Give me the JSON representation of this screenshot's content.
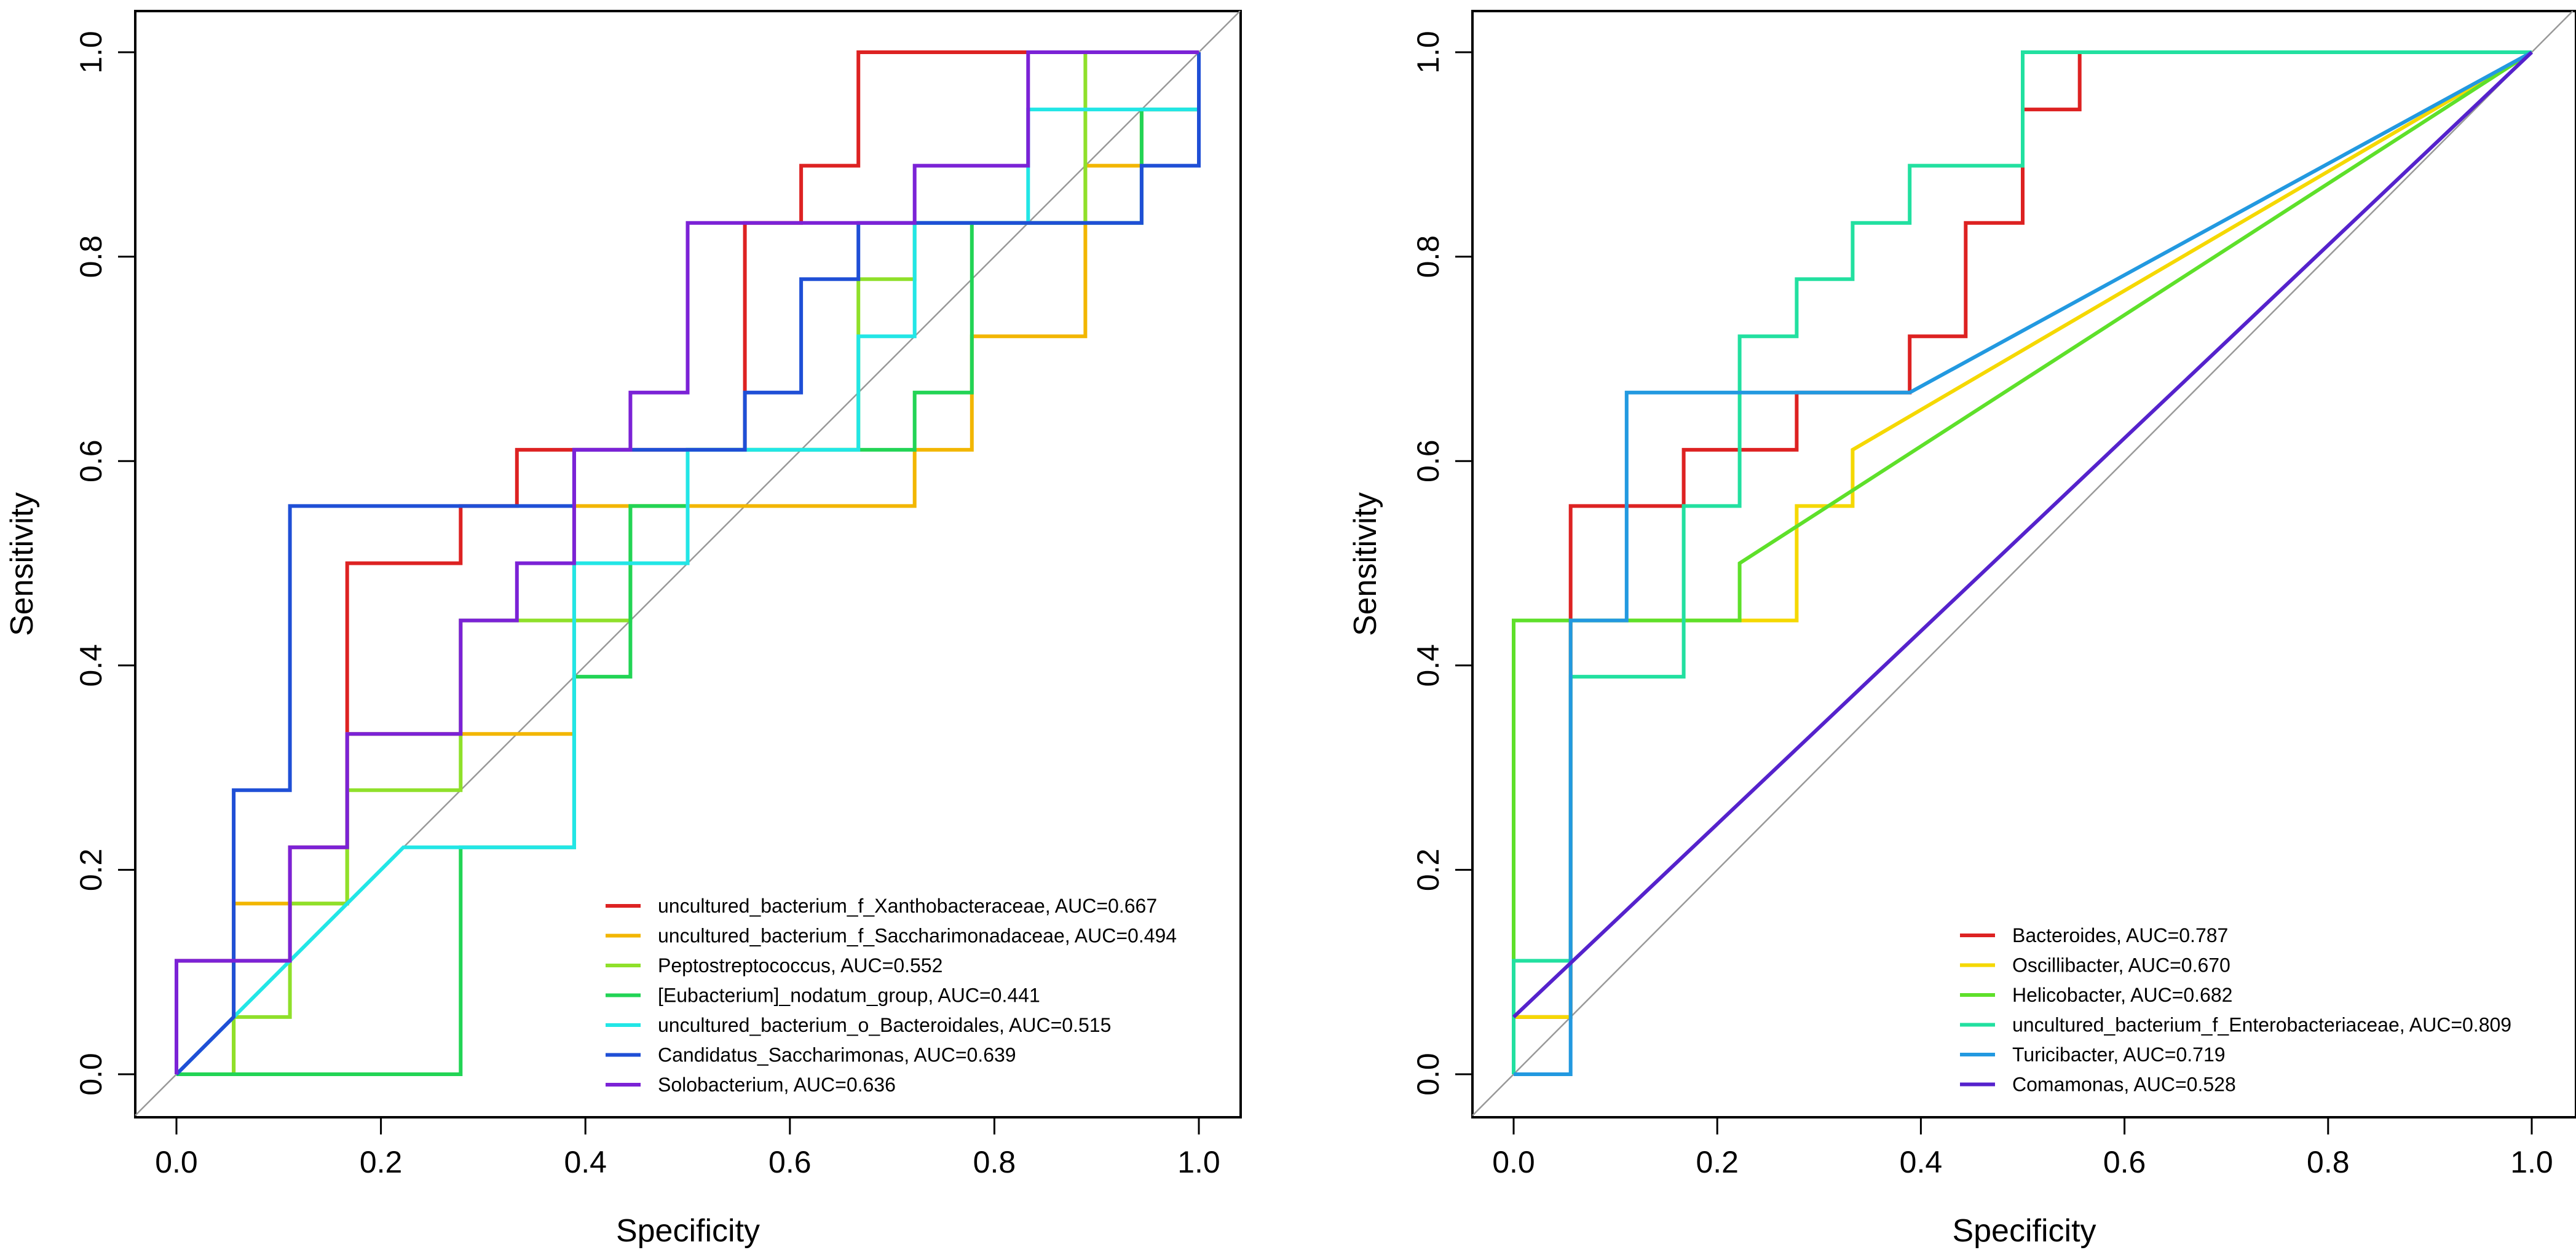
{
  "chart_data": [
    {
      "type": "line",
      "xlabel": "Specificity",
      "ylabel": "Sensitivity",
      "xlim": [
        0,
        1
      ],
      "ylim": [
        0,
        1
      ],
      "xticks": [
        "0.0",
        "0.2",
        "0.4",
        "0.6",
        "0.8",
        "1.0"
      ],
      "yticks": [
        "0.0",
        "0.2",
        "0.4",
        "0.6",
        "0.8",
        "1.0"
      ],
      "legend_position": "bottom-right",
      "series": [
        {
          "name": "uncultured_bacterium_f_Xanthobacteraceae",
          "label": "uncultured_bacterium_f_Xanthobacteraceae, AUC=0.667",
          "auc": 0.667,
          "color": "#DD2222",
          "points": [
            [
              0,
              0
            ],
            [
              0,
              0.111
            ],
            [
              0.111,
              0.111
            ],
            [
              0.111,
              0.222
            ],
            [
              0.167,
              0.222
            ],
            [
              0.167,
              0.5
            ],
            [
              0.278,
              0.5
            ],
            [
              0.278,
              0.556
            ],
            [
              0.333,
              0.556
            ],
            [
              0.333,
              0.611
            ],
            [
              0.556,
              0.611
            ],
            [
              0.556,
              0.833
            ],
            [
              0.611,
              0.833
            ],
            [
              0.611,
              0.889
            ],
            [
              0.667,
              0.889
            ],
            [
              0.667,
              1
            ],
            [
              1,
              1
            ]
          ]
        },
        {
          "name": "uncultured_bacterium_f_Saccharimonadaceae",
          "label": "uncultured_bacterium_f_Saccharimonadaceae, AUC=0.494",
          "auc": 0.494,
          "color": "#F2B600",
          "points": [
            [
              0,
              0
            ],
            [
              0.056,
              0
            ],
            [
              0.056,
              0.167
            ],
            [
              0.167,
              0.167
            ],
            [
              0.167,
              0.333
            ],
            [
              0.389,
              0.333
            ],
            [
              0.389,
              0.556
            ],
            [
              0.722,
              0.556
            ],
            [
              0.722,
              0.611
            ],
            [
              0.778,
              0.611
            ],
            [
              0.778,
              0.722
            ],
            [
              0.889,
              0.722
            ],
            [
              0.889,
              0.889
            ],
            [
              0.944,
              0.889
            ],
            [
              0.944,
              0.944
            ],
            [
              1,
              0.944
            ],
            [
              1,
              1
            ]
          ]
        },
        {
          "name": "Peptostreptococcus",
          "label": "Peptostreptococcus, AUC=0.552",
          "auc": 0.552,
          "color": "#8FE02A",
          "points": [
            [
              0,
              0
            ],
            [
              0.056,
              0
            ],
            [
              0.056,
              0.056
            ],
            [
              0.111,
              0.056
            ],
            [
              0.111,
              0.167
            ],
            [
              0.167,
              0.167
            ],
            [
              0.167,
              0.278
            ],
            [
              0.278,
              0.278
            ],
            [
              0.278,
              0.444
            ],
            [
              0.444,
              0.444
            ],
            [
              0.444,
              0.556
            ],
            [
              0.5,
              0.556
            ],
            [
              0.5,
              0.611
            ],
            [
              0.667,
              0.611
            ],
            [
              0.667,
              0.778
            ],
            [
              0.722,
              0.778
            ],
            [
              0.722,
              0.833
            ],
            [
              0.889,
              0.833
            ],
            [
              0.889,
              1
            ],
            [
              1,
              1
            ]
          ]
        },
        {
          "name": "[Eubacterium]_nodatum_group",
          "label": "[Eubacterium]_nodatum_group, AUC=0.441",
          "auc": 0.441,
          "color": "#22D455",
          "points": [
            [
              0,
              0
            ],
            [
              0.278,
              0
            ],
            [
              0.278,
              0.222
            ],
            [
              0.389,
              0.222
            ],
            [
              0.389,
              0.389
            ],
            [
              0.444,
              0.389
            ],
            [
              0.444,
              0.556
            ],
            [
              0.5,
              0.556
            ],
            [
              0.5,
              0.611
            ],
            [
              0.722,
              0.611
            ],
            [
              0.722,
              0.667
            ],
            [
              0.778,
              0.667
            ],
            [
              0.778,
              0.833
            ],
            [
              0.944,
              0.833
            ],
            [
              0.944,
              0.944
            ],
            [
              1,
              0.944
            ],
            [
              1,
              1
            ]
          ]
        },
        {
          "name": "uncultured_bacterium_o_Bacteroidales",
          "label": "uncultured_bacterium_o_Bacteroidales, AUC=0.515",
          "auc": 0.515,
          "color": "#22E6E6",
          "points": [
            [
              0,
              0
            ],
            [
              0.222,
              0.222
            ],
            [
              0.389,
              0.222
            ],
            [
              0.389,
              0.5
            ],
            [
              0.5,
              0.5
            ],
            [
              0.5,
              0.611
            ],
            [
              0.667,
              0.611
            ],
            [
              0.667,
              0.722
            ],
            [
              0.722,
              0.722
            ],
            [
              0.722,
              0.833
            ],
            [
              0.833,
              0.833
            ],
            [
              0.833,
              0.944
            ],
            [
              1,
              0.944
            ],
            [
              1,
              1
            ]
          ]
        },
        {
          "name": "Candidatus_Saccharimonas",
          "label": "Candidatus_Saccharimonas, AUC=0.639",
          "auc": 0.639,
          "color": "#1F4FD6",
          "points": [
            [
              0,
              0
            ],
            [
              0.056,
              0.056
            ],
            [
              0.056,
              0.278
            ],
            [
              0.111,
              0.278
            ],
            [
              0.111,
              0.556
            ],
            [
              0.389,
              0.556
            ],
            [
              0.389,
              0.611
            ],
            [
              0.556,
              0.611
            ],
            [
              0.556,
              0.667
            ],
            [
              0.611,
              0.667
            ],
            [
              0.611,
              0.778
            ],
            [
              0.667,
              0.778
            ],
            [
              0.667,
              0.833
            ],
            [
              0.944,
              0.833
            ],
            [
              0.944,
              0.889
            ],
            [
              1,
              0.889
            ],
            [
              1,
              1
            ]
          ]
        },
        {
          "name": "Solobacterium",
          "label": "Solobacterium, AUC=0.636",
          "auc": 0.636,
          "color": "#7B22D6",
          "points": [
            [
              0,
              0
            ],
            [
              0,
              0.111
            ],
            [
              0.111,
              0.111
            ],
            [
              0.111,
              0.222
            ],
            [
              0.167,
              0.222
            ],
            [
              0.167,
              0.333
            ],
            [
              0.278,
              0.333
            ],
            [
              0.278,
              0.444
            ],
            [
              0.333,
              0.444
            ],
            [
              0.333,
              0.5
            ],
            [
              0.389,
              0.5
            ],
            [
              0.389,
              0.611
            ],
            [
              0.444,
              0.611
            ],
            [
              0.444,
              0.667
            ],
            [
              0.5,
              0.667
            ],
            [
              0.5,
              0.833
            ],
            [
              0.722,
              0.833
            ],
            [
              0.722,
              0.889
            ],
            [
              0.833,
              0.889
            ],
            [
              0.833,
              1
            ],
            [
              1,
              1
            ]
          ]
        }
      ]
    },
    {
      "type": "line",
      "xlabel": "Specificity",
      "ylabel": "Sensitivity",
      "xlim": [
        0,
        1
      ],
      "ylim": [
        0,
        1
      ],
      "xticks": [
        "0.0",
        "0.2",
        "0.4",
        "0.6",
        "0.8",
        "1.0"
      ],
      "yticks": [
        "0.0",
        "0.2",
        "0.4",
        "0.6",
        "0.8",
        "1.0"
      ],
      "legend_position": "bottom-right",
      "series": [
        {
          "name": "Bacteroides",
          "label": "Bacteroides, AUC=0.787",
          "auc": 0.787,
          "color": "#DD2222",
          "points": [
            [
              0,
              0
            ],
            [
              0,
              0.056
            ],
            [
              0.056,
              0.056
            ],
            [
              0.056,
              0.556
            ],
            [
              0.167,
              0.556
            ],
            [
              0.167,
              0.611
            ],
            [
              0.278,
              0.611
            ],
            [
              0.278,
              0.667
            ],
            [
              0.389,
              0.667
            ],
            [
              0.389,
              0.722
            ],
            [
              0.444,
              0.722
            ],
            [
              0.444,
              0.833
            ],
            [
              0.5,
              0.833
            ],
            [
              0.5,
              0.944
            ],
            [
              0.556,
              0.944
            ],
            [
              0.556,
              1
            ],
            [
              1,
              1
            ]
          ]
        },
        {
          "name": "Oscillibacter",
          "label": "Oscillibacter, AUC=0.670",
          "auc": 0.67,
          "color": "#F5D800",
          "points": [
            [
              0,
              0
            ],
            [
              0,
              0.056
            ],
            [
              0.056,
              0.056
            ],
            [
              0.056,
              0.444
            ],
            [
              0.278,
              0.444
            ],
            [
              0.278,
              0.556
            ],
            [
              0.333,
              0.556
            ],
            [
              0.333,
              0.611
            ],
            [
              1,
              1
            ]
          ]
        },
        {
          "name": "Helicobacter",
          "label": "Helicobacter, AUC=0.682",
          "auc": 0.682,
          "color": "#5EE02A",
          "points": [
            [
              0,
              0
            ],
            [
              0,
              0.444
            ],
            [
              0.222,
              0.444
            ],
            [
              0.222,
              0.5
            ],
            [
              1,
              1
            ]
          ]
        },
        {
          "name": "uncultured_bacterium_f_Enterobacteriaceae",
          "label": "uncultured_bacterium_f_Enterobacteriaceae, AUC=0.809",
          "auc": 0.809,
          "color": "#22E0A0",
          "points": [
            [
              0,
              0
            ],
            [
              0,
              0.111
            ],
            [
              0.056,
              0.111
            ],
            [
              0.056,
              0.389
            ],
            [
              0.167,
              0.389
            ],
            [
              0.167,
              0.556
            ],
            [
              0.222,
              0.556
            ],
            [
              0.222,
              0.722
            ],
            [
              0.278,
              0.722
            ],
            [
              0.278,
              0.778
            ],
            [
              0.333,
              0.778
            ],
            [
              0.333,
              0.833
            ],
            [
              0.389,
              0.833
            ],
            [
              0.389,
              0.889
            ],
            [
              0.5,
              0.889
            ],
            [
              0.5,
              1
            ],
            [
              1,
              1
            ]
          ]
        },
        {
          "name": "Turicibacter",
          "label": "Turicibacter, AUC=0.719",
          "auc": 0.719,
          "color": "#2299E0",
          "points": [
            [
              0,
              0
            ],
            [
              0.056,
              0
            ],
            [
              0.056,
              0.444
            ],
            [
              0.111,
              0.444
            ],
            [
              0.111,
              0.667
            ],
            [
              0.389,
              0.667
            ],
            [
              1,
              1
            ]
          ]
        },
        {
          "name": "Comamonas",
          "label": "Comamonas, AUC=0.528",
          "auc": 0.528,
          "color": "#5522CC",
          "points": [
            [
              0,
              0.056
            ],
            [
              1,
              1
            ]
          ]
        }
      ]
    }
  ]
}
